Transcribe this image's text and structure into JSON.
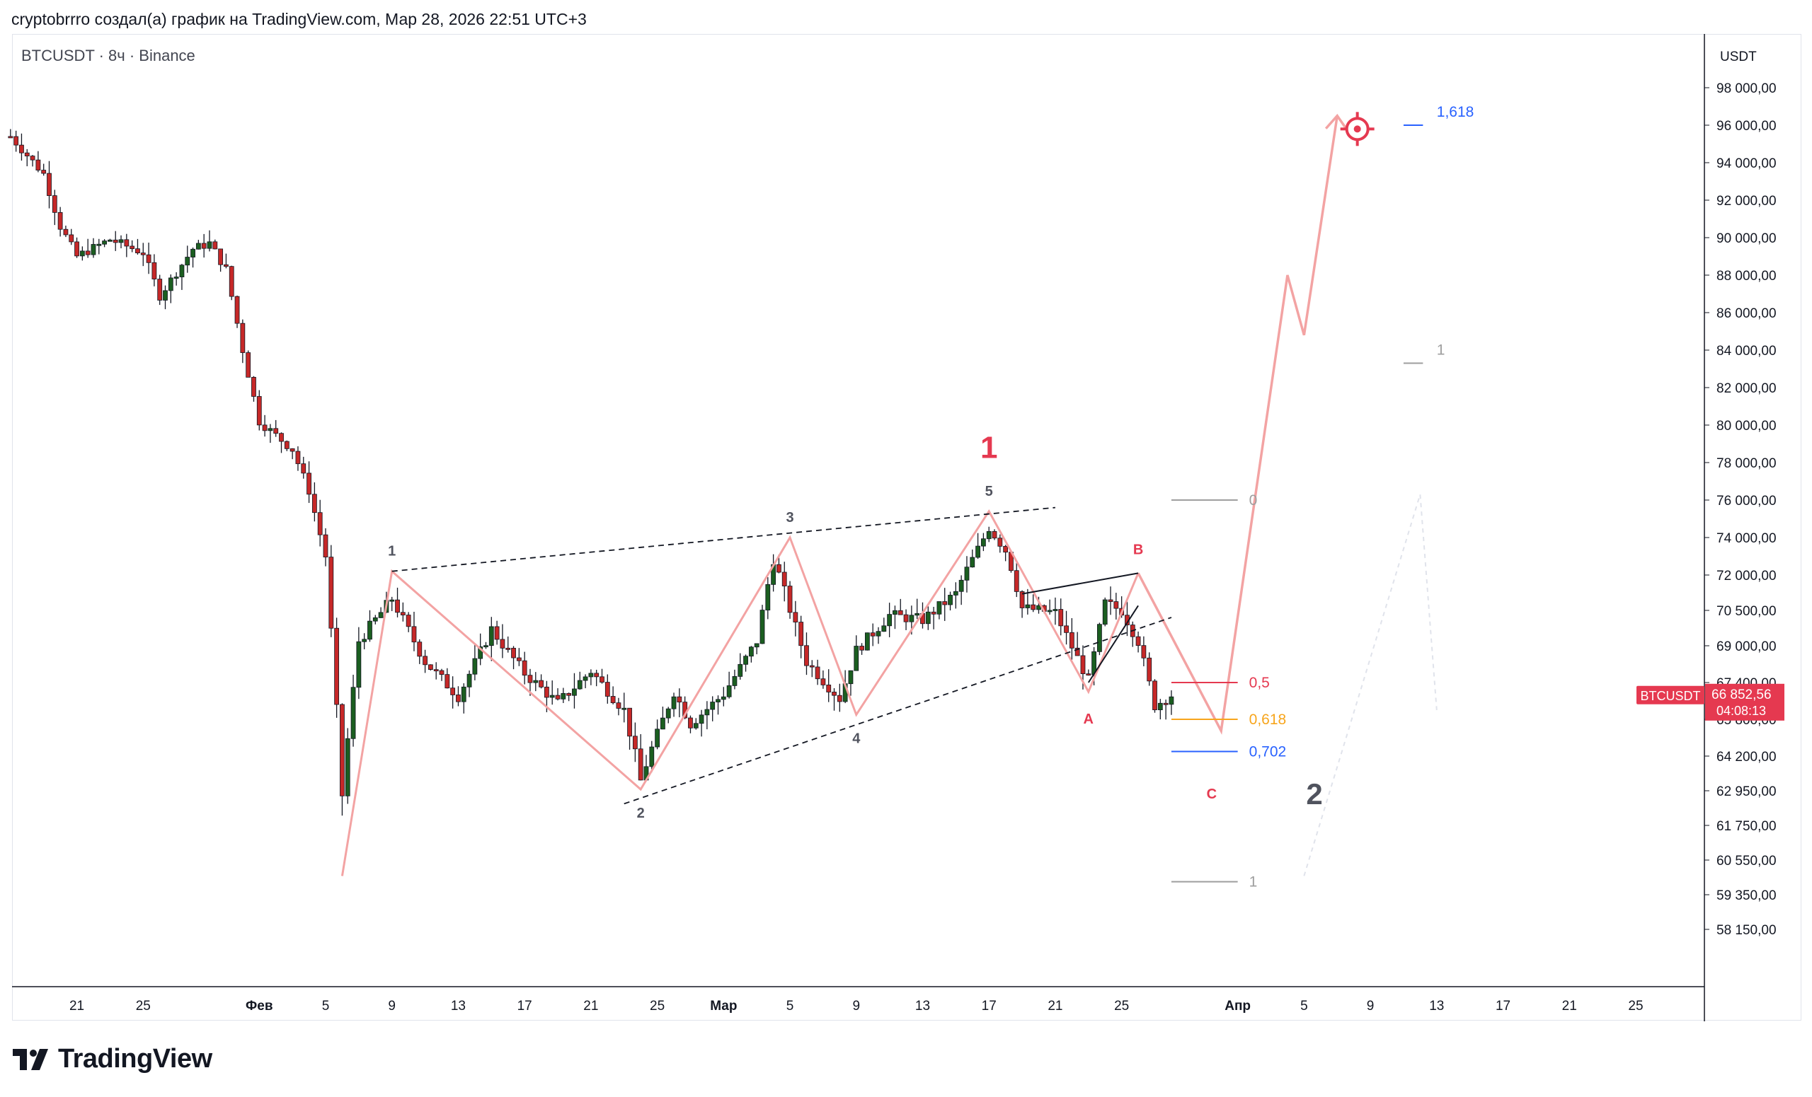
{
  "header": {
    "attribution": "cryptobrrro создал(а) график на TradingView.com, Мар 28, 2026 22:51 UTC+3",
    "symbol_line": "BTCUSDT · 8ч · Binance"
  },
  "brand": {
    "name": "TradingView"
  },
  "colors": {
    "up": "#1b5e20",
    "down": "#c62828",
    "wave_projection": "#f3a3a3",
    "wave_red": "#e53950",
    "fib_blue": "#2962ff",
    "fib_orange": "#f7a51c",
    "fib_gray": "#9e9e9e",
    "price_badge": "#e53950"
  },
  "chart_data": {
    "type": "candlestick",
    "ylabel": "USDT",
    "y_ticks": [
      "98 000,00",
      "96 000,00",
      "94 000,00",
      "92 000,00",
      "90 000,00",
      "88 000,00",
      "86 000,00",
      "84 000,00",
      "82 000,00",
      "80 000,00",
      "78 000,00",
      "76 000,00",
      "74 000,00",
      "72 000,00",
      "70 500,00",
      "69 000,00",
      "67 400,00",
      "65 800,00",
      "64 200,00",
      "62 950,00",
      "61 750,00",
      "60 550,00",
      "59 350,00",
      "58 150,00"
    ],
    "x_ticks": [
      "21",
      "25",
      "Фев",
      "5",
      "9",
      "13",
      "17",
      "21",
      "25",
      "Мар",
      "5",
      "9",
      "13",
      "17",
      "21",
      "25",
      "Апр",
      "5",
      "9",
      "13",
      "17",
      "21",
      "25"
    ],
    "last_price": {
      "symbol": "BTCUSDT",
      "value": "66 852,56",
      "countdown": "04:08:13"
    },
    "price_path": [
      [
        "Jan 17",
        95400
      ],
      [
        "Jan 19",
        93400
      ],
      [
        "Jan 20",
        90600
      ],
      [
        "Jan 21",
        89000
      ],
      [
        "Jan 23",
        89900
      ],
      [
        "Jan 25",
        89200
      ],
      [
        "Jan 26",
        86900
      ],
      [
        "Jan 28",
        89400
      ],
      [
        "Jan 29",
        89700
      ],
      [
        "Jan 30",
        88300
      ],
      [
        "Jan 31",
        84000
      ],
      [
        "Feb 1",
        80200
      ],
      [
        "Feb 3",
        78700
      ],
      [
        "Feb 4",
        76500
      ],
      [
        "Feb 5",
        73000
      ],
      [
        "Feb 6",
        62800
      ],
      [
        "Feb 7",
        69200
      ],
      [
        "Feb 9",
        71000
      ],
      [
        "Feb 11",
        68300
      ],
      [
        "Feb 13",
        66800
      ],
      [
        "Feb 15",
        69700
      ],
      [
        "Feb 17",
        67800
      ],
      [
        "Feb 19",
        66500
      ],
      [
        "Feb 21",
        67900
      ],
      [
        "Feb 23",
        66200
      ],
      [
        "Feb 24",
        63300
      ],
      [
        "Feb 26",
        67000
      ],
      [
        "Feb 27",
        65600
      ],
      [
        "Mar 1",
        66900
      ],
      [
        "Mar 3",
        69200
      ],
      [
        "Mar 4",
        72800
      ],
      [
        "Mar 6",
        68300
      ],
      [
        "Mar 8",
        66700
      ],
      [
        "Mar 9",
        68800
      ],
      [
        "Mar 11",
        70300
      ],
      [
        "Mar 13",
        70100
      ],
      [
        "Mar 15",
        71200
      ],
      [
        "Mar 17",
        74500
      ],
      [
        "Mar 18",
        73300
      ],
      [
        "Mar 19",
        70600
      ],
      [
        "Mar 21",
        70400
      ],
      [
        "Mar 23",
        67500
      ],
      [
        "Mar 24",
        70800
      ],
      [
        "Mar 25",
        70500
      ],
      [
        "Mar 26",
        69200
      ],
      [
        "Mar 27",
        66400
      ],
      [
        "Mar 28",
        66850
      ]
    ],
    "wave_counts": [
      {
        "label": "1",
        "date": "Feb 9",
        "price": 72200
      },
      {
        "label": "2",
        "date": "Feb 24",
        "price": 63000
      },
      {
        "label": "3",
        "date": "Mar 5",
        "price": 74000
      },
      {
        "label": "4",
        "date": "Mar 9",
        "price": 66000
      },
      {
        "label": "5",
        "date": "Mar 17",
        "price": 75400
      },
      {
        "label": "1",
        "date": "Mar 17",
        "price": 77500
      },
      {
        "label": "A",
        "date": "Mar 23",
        "price": 67000
      },
      {
        "label": "B",
        "date": "Mar 26",
        "price": 72200
      },
      {
        "label": "C",
        "date": "Mar 30",
        "price": 64000
      },
      {
        "label": "2",
        "date": "Apr 2",
        "price": 64000
      }
    ],
    "projection_path": [
      [
        "Mar 26",
        72100
      ],
      [
        "Mar 31",
        65300
      ],
      [
        "Apr 4",
        88000
      ],
      [
        "Apr 5",
        84800
      ],
      [
        "Apr 7",
        96500
      ]
    ],
    "fib_retracement": [
      {
        "level": "0",
        "price": 76000
      },
      {
        "level": "0,5",
        "price": 67400
      },
      {
        "level": "0,618",
        "price": 65800
      },
      {
        "level": "0,702",
        "price": 64400
      },
      {
        "level": "1",
        "price": 59800
      }
    ],
    "fib_extension": [
      {
        "level": "1,618",
        "price": 96000
      },
      {
        "level": "1",
        "price": 83300
      }
    ],
    "target": {
      "date": "Apr 8",
      "price": 96100
    }
  }
}
